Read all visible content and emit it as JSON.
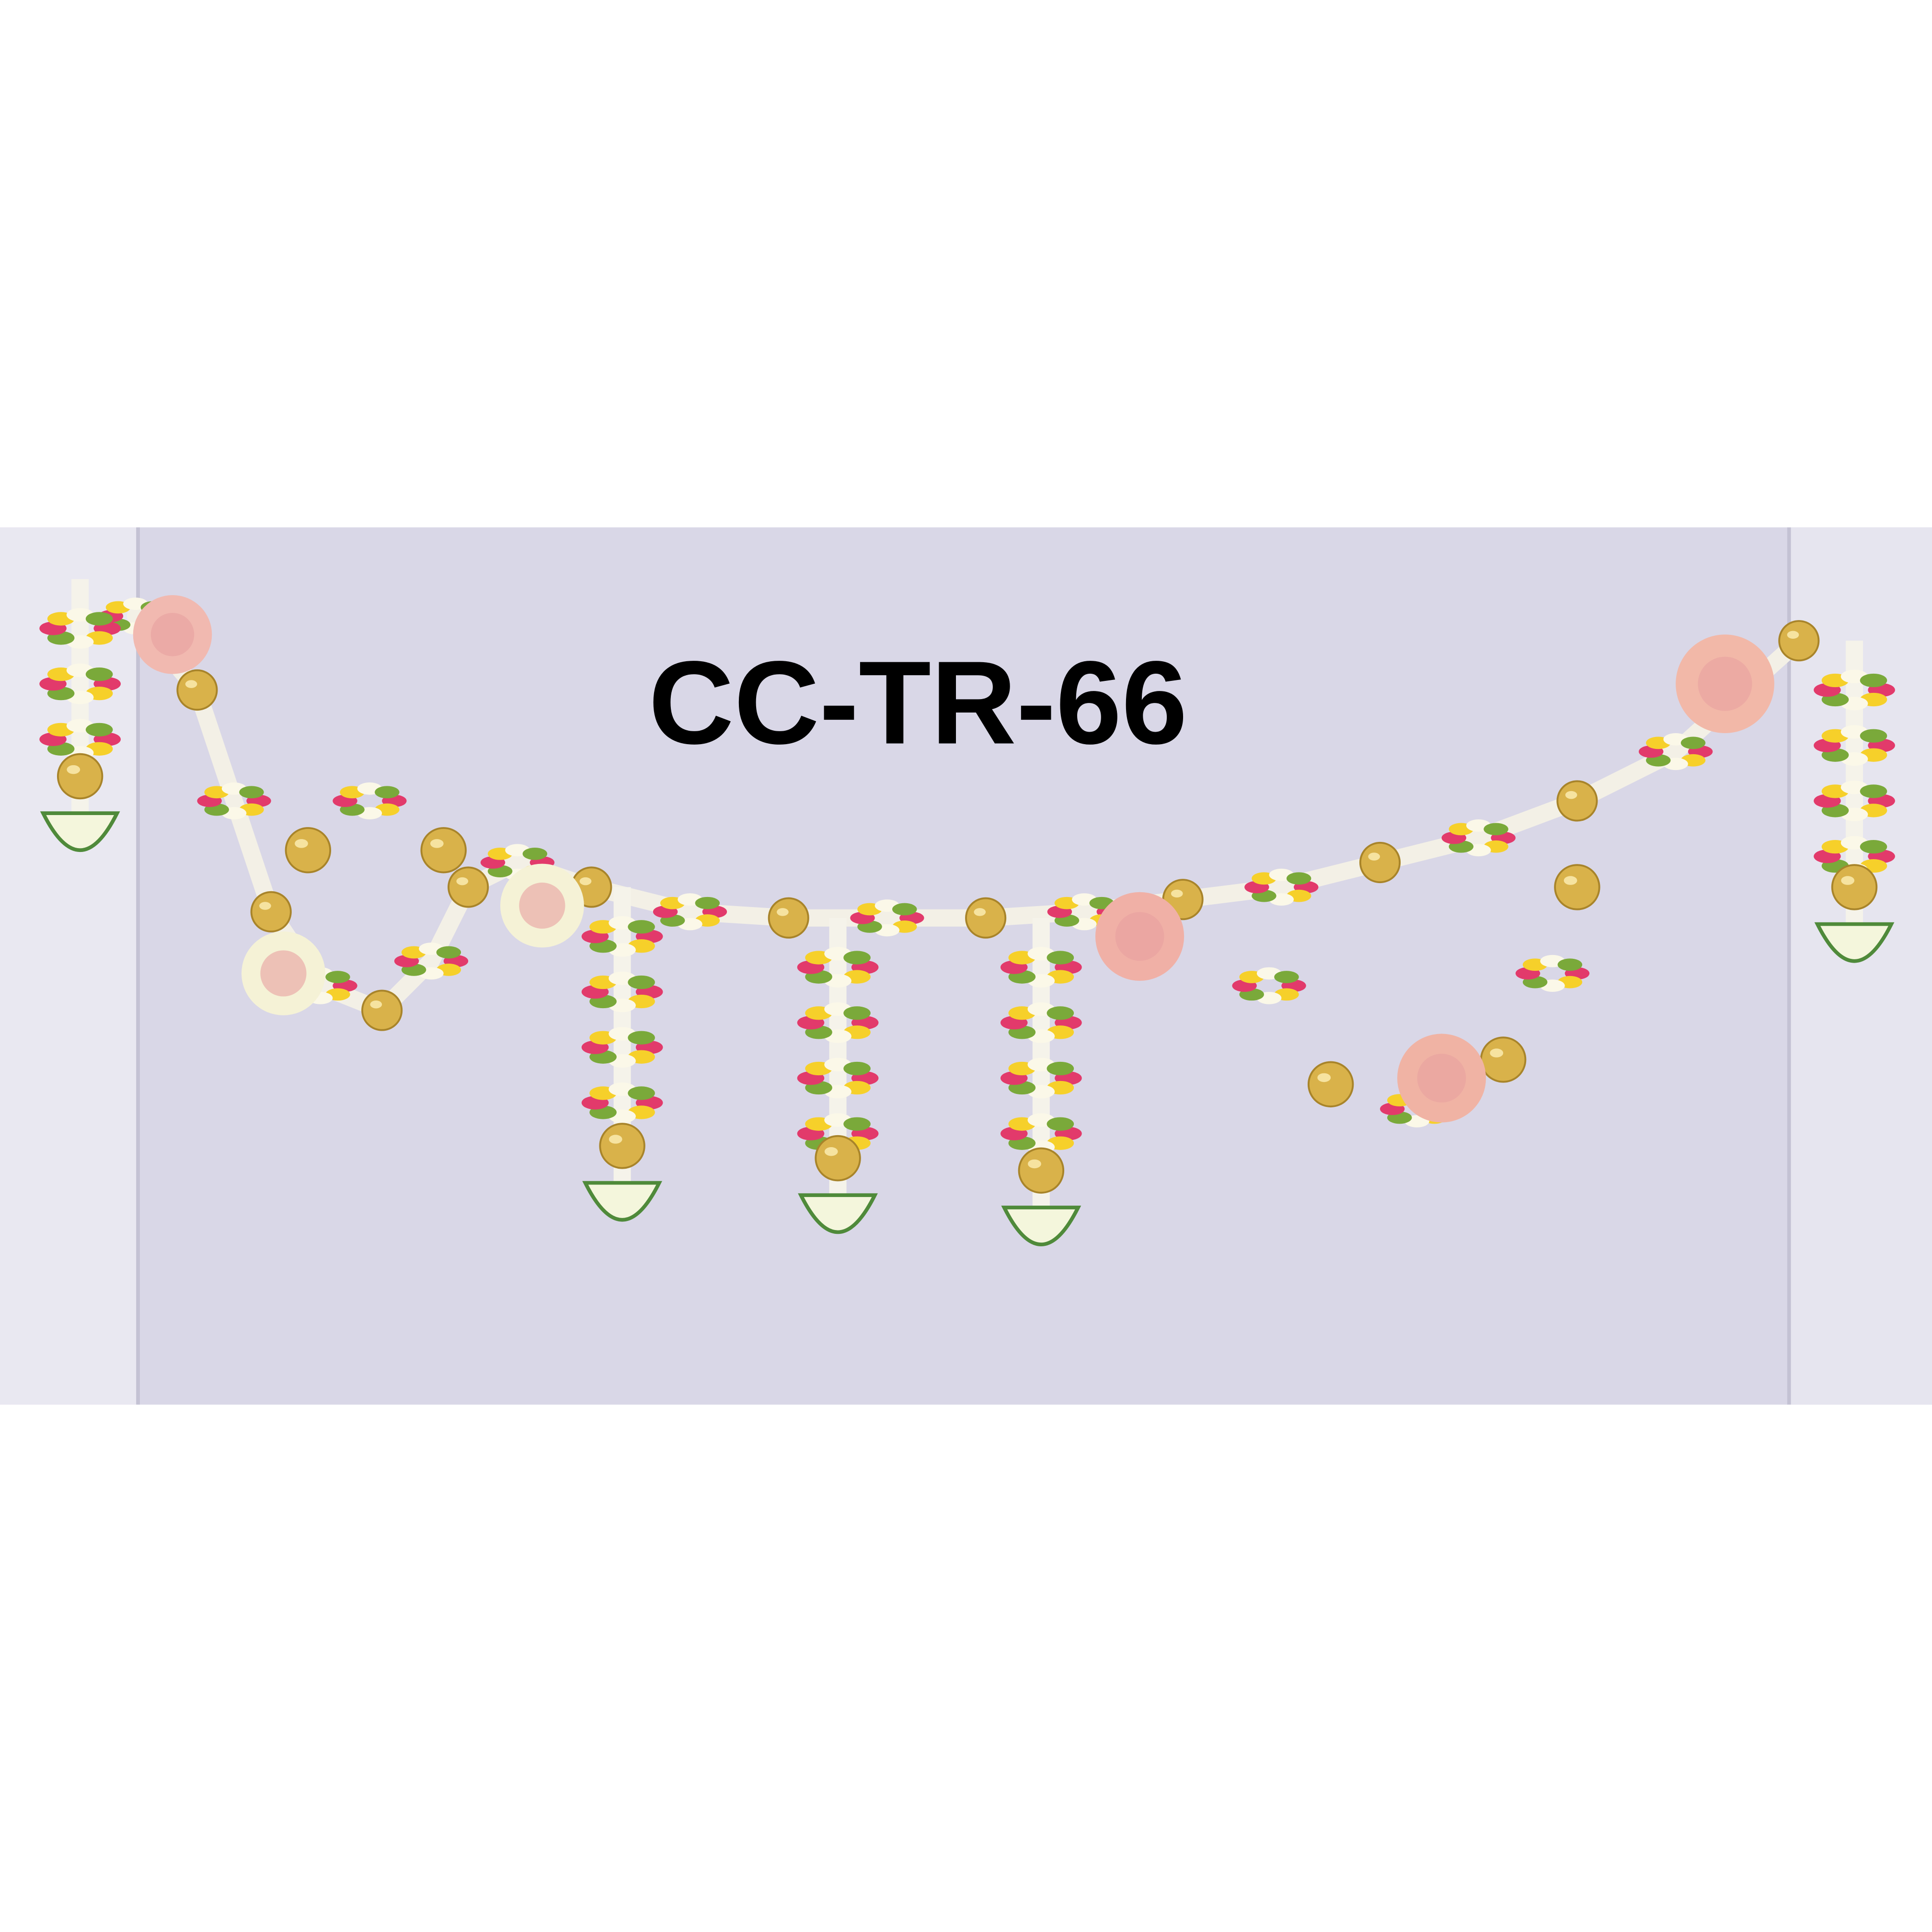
{
  "product_code": "CC-TR-66"
}
